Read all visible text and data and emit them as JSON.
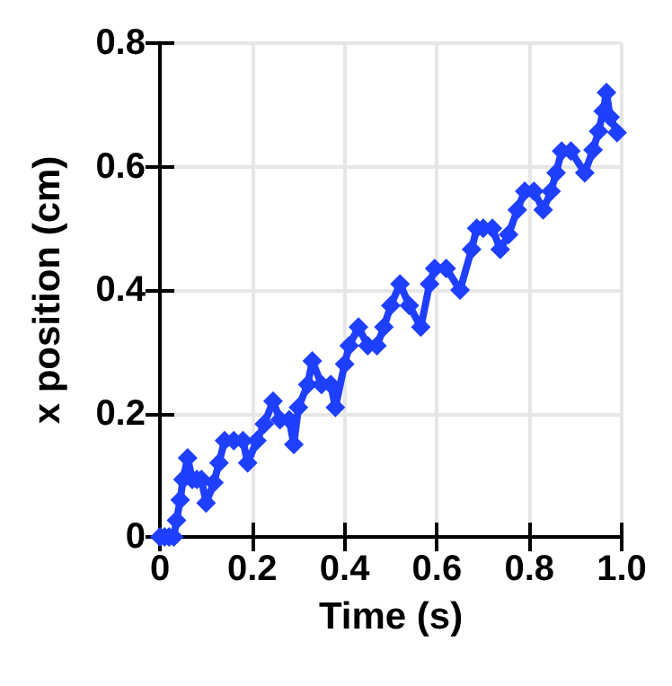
{
  "chart_data": {
    "type": "line",
    "xlabel": "Time (s)",
    "ylabel": "x position (cm)",
    "x": [
      0,
      0.01,
      0.02,
      0.03,
      0.036,
      0.044,
      0.05,
      0.06,
      0.07,
      0.08,
      0.09,
      0.1,
      0.117,
      0.128,
      0.14,
      0.16,
      0.18,
      0.19,
      0.21,
      0.226,
      0.245,
      0.26,
      0.28,
      0.29,
      0.3,
      0.32,
      0.33,
      0.35,
      0.37,
      0.38,
      0.4,
      0.41,
      0.43,
      0.45,
      0.47,
      0.485,
      0.5,
      0.52,
      0.54,
      0.565,
      0.584,
      0.595,
      0.62,
      0.65,
      0.675,
      0.686,
      0.7,
      0.72,
      0.737,
      0.755,
      0.774,
      0.79,
      0.81,
      0.83,
      0.847,
      0.858,
      0.87,
      0.89,
      0.92,
      0.938,
      0.95,
      0.96,
      0.967,
      0.975,
      0.99
    ],
    "series": [
      {
        "color": "#1f3fff",
        "values": [
          0,
          0,
          0,
          0,
          0.027,
          0.06,
          0.093,
          0.128,
          0.093,
          0.093,
          0.093,
          0.055,
          0.088,
          0.12,
          0.156,
          0.156,
          0.156,
          0.12,
          0.156,
          0.183,
          0.22,
          0.19,
          0.19,
          0.15,
          0.21,
          0.247,
          0.285,
          0.247,
          0.247,
          0.21,
          0.28,
          0.31,
          0.34,
          0.31,
          0.31,
          0.34,
          0.375,
          0.41,
          0.375,
          0.34,
          0.41,
          0.435,
          0.435,
          0.4,
          0.466,
          0.5,
          0.5,
          0.5,
          0.466,
          0.49,
          0.53,
          0.56,
          0.56,
          0.53,
          0.56,
          0.59,
          0.625,
          0.625,
          0.59,
          0.627,
          0.657,
          0.69,
          0.72,
          0.68,
          0.655
        ]
      }
    ],
    "xlim": [
      0,
      1
    ],
    "xticks": [
      0,
      0.2,
      0.4,
      0.6,
      0.8,
      {
        "value": 1,
        "label": "1.0"
      }
    ],
    "ylim": [
      0,
      0.8
    ],
    "yticks": [
      0,
      0.2,
      0.4,
      0.6,
      0.8
    ],
    "grid": true,
    "marker": "diamond",
    "line_style": "solid"
  }
}
